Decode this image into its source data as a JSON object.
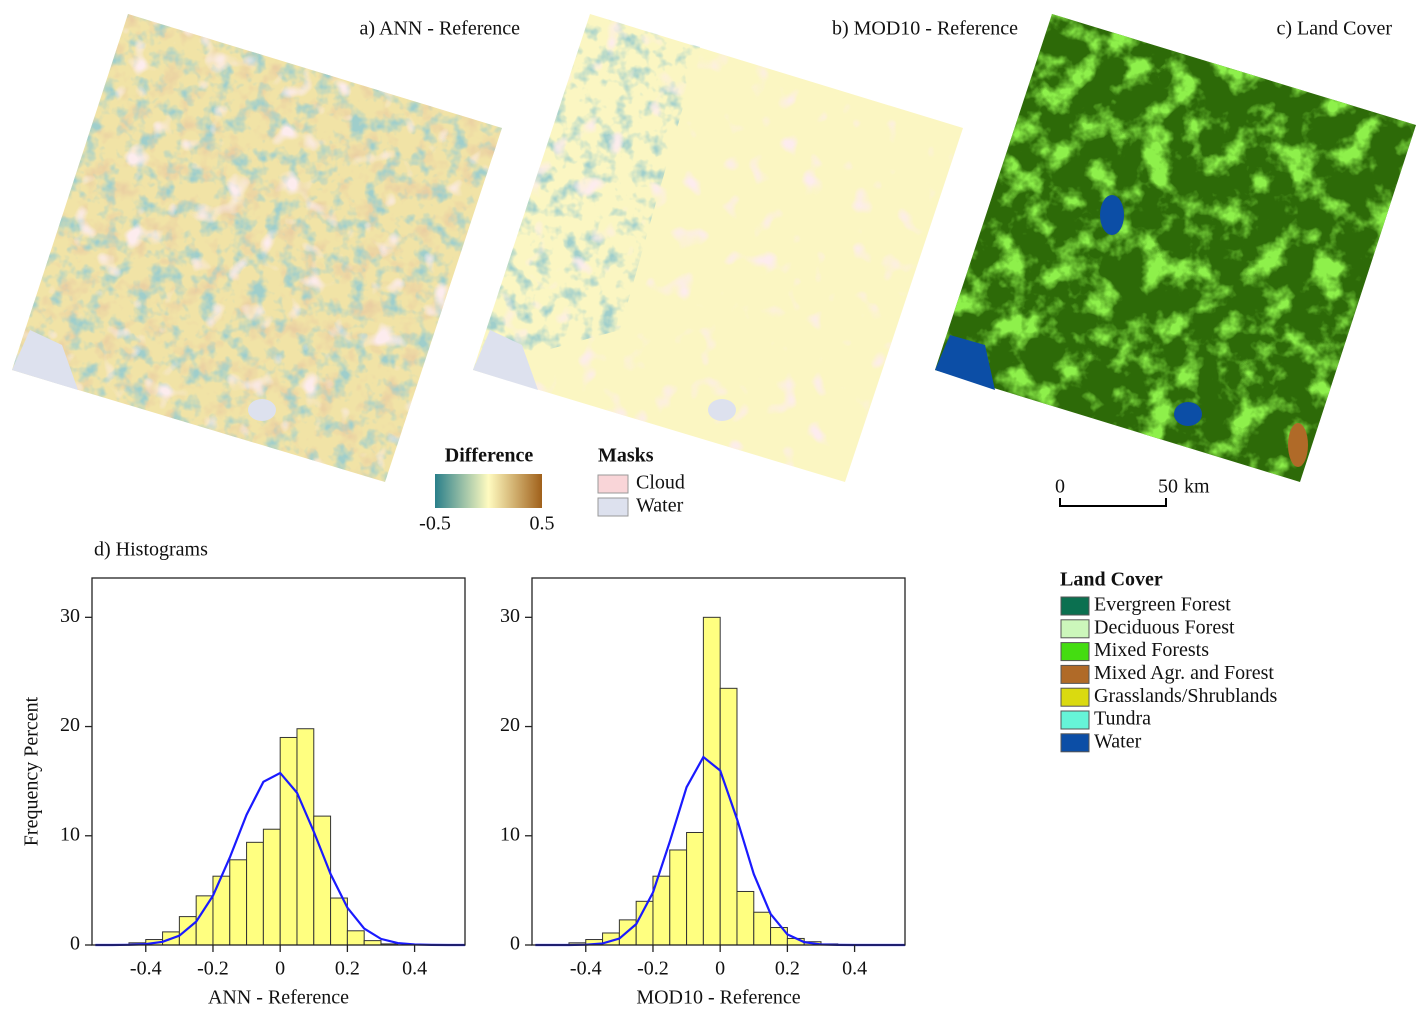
{
  "panels": {
    "a": "a) ANN - Reference",
    "b": "b) MOD10 - Reference",
    "c": "c) Land Cover",
    "d": "d) Histograms"
  },
  "difference_legend": {
    "title": "Difference",
    "min_label": "-0.5",
    "max_label": "0.5",
    "colors": [
      "#2a7f8a",
      "#fffbc0",
      "#a0601a"
    ]
  },
  "masks_legend": {
    "title": "Masks",
    "items": [
      {
        "label": "Cloud",
        "color": "#f9d5d8"
      },
      {
        "label": "Water",
        "color": "#dde1ee"
      }
    ]
  },
  "scale_bar": {
    "start": "0",
    "end": "50",
    "unit": "km"
  },
  "land_cover_legend": {
    "title": "Land Cover",
    "items": [
      {
        "label": "Evergreen Forest",
        "color": "#0b7050"
      },
      {
        "label": "Deciduous Forest",
        "color": "#ccf7bb"
      },
      {
        "label": "Mixed Forests",
        "color": "#44dd11"
      },
      {
        "label": "Mixed Agr. and Forest",
        "color": "#b06a28"
      },
      {
        "label": "Grasslands/Shrublands",
        "color": "#dada10"
      },
      {
        "label": "Tundra",
        "color": "#66f5d8"
      },
      {
        "label": "Water",
        "color": "#0c4ea6"
      }
    ]
  },
  "chart_data": [
    {
      "type": "histogram",
      "x_label": "ANN - Reference",
      "y_label": "Frequency Percent",
      "bins": [
        -0.45,
        -0.4,
        -0.35,
        -0.3,
        -0.25,
        -0.2,
        -0.15,
        -0.1,
        -0.05,
        0,
        0.05,
        0.1,
        0.15,
        0.2,
        0.25,
        0.3,
        0.35
      ],
      "counts": [
        0.2,
        0.5,
        1.2,
        2.6,
        4.5,
        6.3,
        7.8,
        9.4,
        10.6,
        19.0,
        19.8,
        11.8,
        4.3,
        1.3,
        0.4,
        0.1
      ],
      "color": "#ffff80",
      "curve": {
        "color": "#1a1aff",
        "x": [
          -0.55,
          -0.5,
          -0.45,
          -0.4,
          -0.35,
          -0.3,
          -0.25,
          -0.2,
          -0.15,
          -0.1,
          -0.05,
          0,
          0.05,
          0.1,
          0.15,
          0.2,
          0.25,
          0.3,
          0.35,
          0.4,
          0.45,
          0.5,
          0.55
        ],
        "values": [
          0.0,
          0.0,
          0.02,
          0.08,
          0.29,
          0.85,
          2.14,
          4.51,
          8.0,
          11.93,
          14.94,
          15.75,
          13.94,
          10.38,
          6.5,
          3.42,
          1.51,
          0.56,
          0.18,
          0.05,
          0.01,
          0.0,
          0.0
        ]
      },
      "xlim": [
        -0.56,
        0.55
      ],
      "ylim": [
        0,
        33.6
      ],
      "xticks": [
        -0.4,
        -0.2,
        0,
        0.2,
        0.4
      ],
      "yticks": [
        0,
        10,
        20,
        30
      ]
    },
    {
      "type": "histogram",
      "x_label": "MOD10 - Reference",
      "bins": [
        -0.45,
        -0.4,
        -0.35,
        -0.3,
        -0.25,
        -0.2,
        -0.15,
        -0.1,
        -0.05,
        0,
        0.05,
        0.1,
        0.15,
        0.2,
        0.25,
        0.3,
        0.35
      ],
      "counts": [
        0.2,
        0.5,
        1.1,
        2.3,
        4.0,
        6.3,
        8.7,
        10.3,
        30.0,
        23.5,
        4.9,
        3.0,
        1.6,
        0.6,
        0.3,
        0.1
      ],
      "color": "#ffff80",
      "curve": {
        "color": "#1a1aff",
        "x": [
          -0.55,
          -0.5,
          -0.45,
          -0.4,
          -0.35,
          -0.3,
          -0.25,
          -0.2,
          -0.15,
          -0.1,
          -0.05,
          0,
          0.05,
          0.1,
          0.15,
          0.2,
          0.25,
          0.3,
          0.35,
          0.4,
          0.45,
          0.5,
          0.55
        ],
        "values": [
          0.0,
          0.0,
          0.0,
          0.03,
          0.14,
          0.59,
          1.91,
          4.81,
          9.45,
          14.45,
          17.21,
          15.97,
          11.54,
          6.49,
          2.84,
          0.97,
          0.26,
          0.05,
          0.01,
          0.0,
          0.0,
          0.0,
          0.0
        ]
      },
      "xlim": [
        -0.56,
        0.55
      ],
      "ylim": [
        0,
        33.6
      ],
      "xticks": [
        -0.4,
        -0.2,
        0,
        0.2,
        0.4
      ],
      "yticks": [
        0,
        10,
        20,
        30
      ]
    }
  ]
}
